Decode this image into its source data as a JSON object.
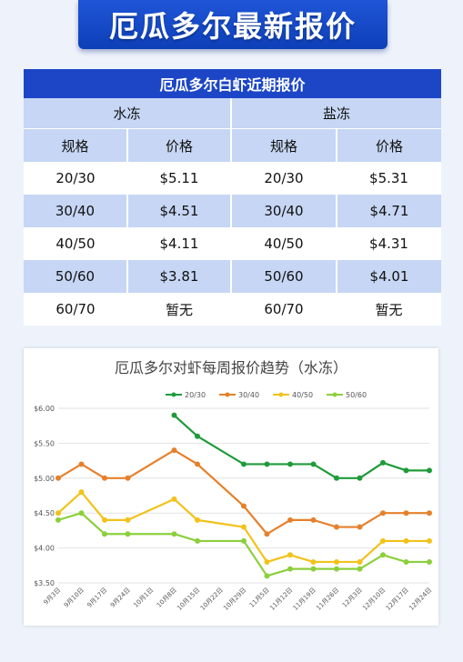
{
  "header": {
    "title": "厄瓜多尔最新报价"
  },
  "price_table": {
    "title": "厄瓜多尔白虾近期报价",
    "groups": [
      "水冻",
      "盐冻"
    ],
    "columns": [
      "规格",
      "价格",
      "规格",
      "价格"
    ],
    "rows": [
      [
        "20/30",
        "$5.11",
        "20/30",
        "$5.31"
      ],
      [
        "30/40",
        "$4.51",
        "30/40",
        "$4.71"
      ],
      [
        "40/50",
        "$4.11",
        "40/50",
        "$4.31"
      ],
      [
        "50/60",
        "$3.81",
        "50/60",
        "$4.01"
      ],
      [
        "60/70",
        "暂无",
        "60/70",
        "暂无"
      ]
    ]
  },
  "chart_data": {
    "type": "line",
    "title": "厄瓜多尔对虾每周报价趋势（水冻）",
    "legend_position": "top",
    "y_tick_labels": [
      "$3.50",
      "$4.00",
      "$4.50",
      "$5.00",
      "$5.50",
      "$6.00"
    ],
    "ylim": [
      3.5,
      6.0
    ],
    "grid": true,
    "x": [
      "9月3日",
      "9月10日",
      "9月17日",
      "9月24日",
      "10月1日",
      "10月8日",
      "10月15日",
      "10月22日",
      "10月29日",
      "11月5日",
      "11月12日",
      "11月19日",
      "11月26日",
      "12月3日",
      "12月10日",
      "12月17日",
      "12月24日"
    ],
    "series": [
      {
        "name": "20/30",
        "color": "#1e9b3a",
        "values": [
          null,
          null,
          null,
          null,
          null,
          5.9,
          5.6,
          null,
          5.2,
          5.2,
          5.2,
          5.2,
          5.0,
          5.0,
          5.22,
          5.11,
          5.11
        ]
      },
      {
        "name": "30/40",
        "color": "#e6802b",
        "values": [
          5.0,
          5.2,
          5.0,
          5.0,
          null,
          5.4,
          5.2,
          null,
          4.6,
          4.2,
          4.4,
          4.4,
          4.3,
          4.3,
          4.5,
          4.5,
          4.5
        ]
      },
      {
        "name": "40/50",
        "color": "#f2c21b",
        "values": [
          4.5,
          4.8,
          4.4,
          4.4,
          null,
          4.7,
          4.4,
          null,
          4.3,
          3.8,
          3.9,
          3.8,
          3.8,
          3.8,
          4.1,
          4.1,
          4.1
        ]
      },
      {
        "name": "50/60",
        "color": "#8ccf3c",
        "values": [
          4.4,
          4.5,
          4.2,
          4.2,
          null,
          4.2,
          4.1,
          null,
          4.1,
          3.6,
          3.7,
          3.7,
          3.7,
          3.7,
          3.9,
          3.8,
          3.8
        ]
      }
    ]
  }
}
